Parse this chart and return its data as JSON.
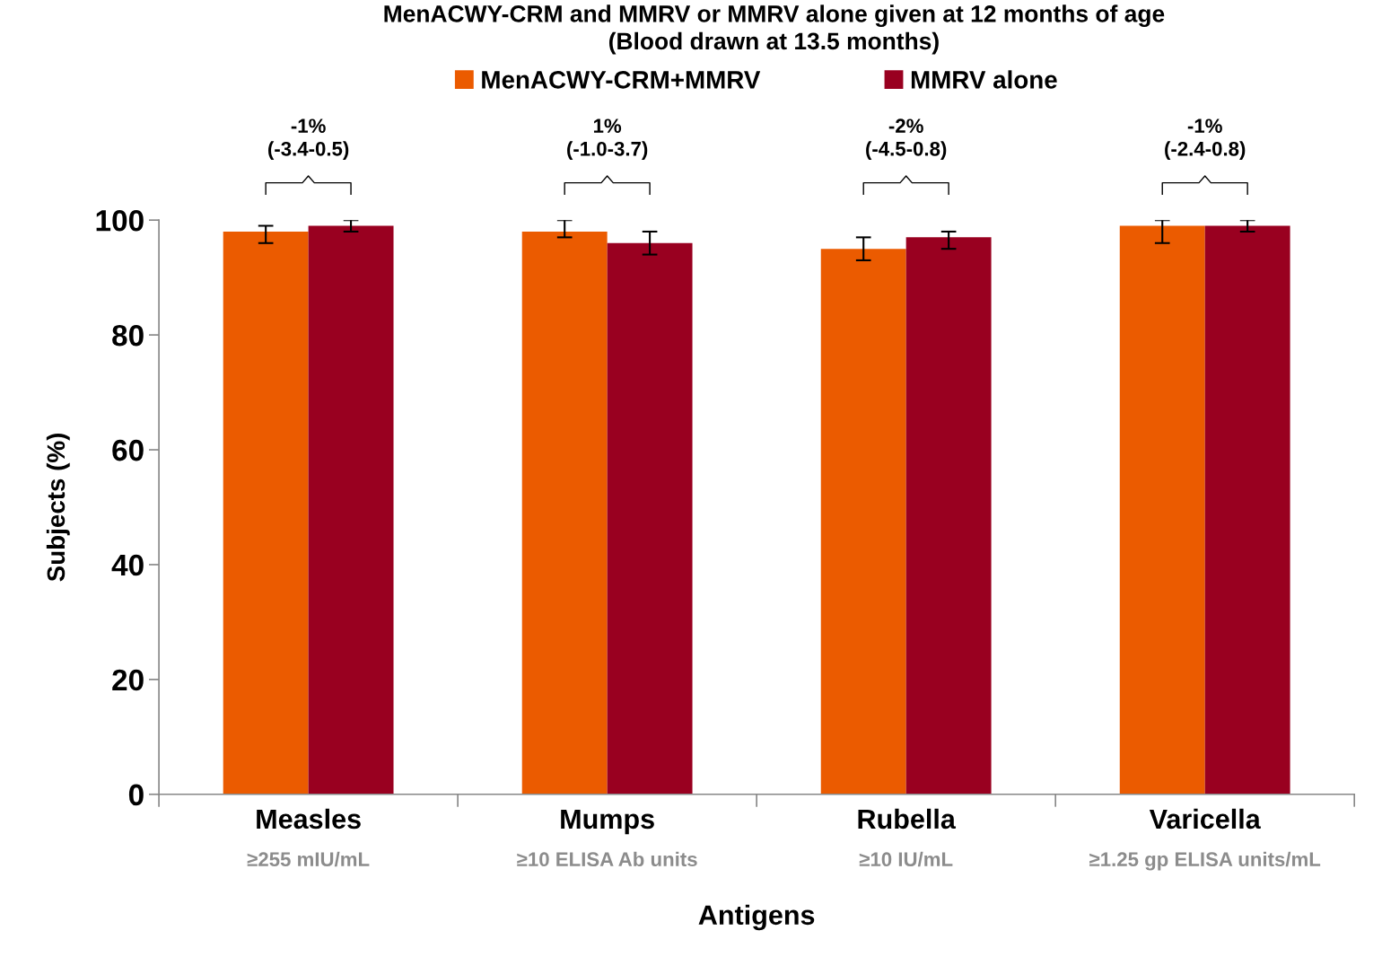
{
  "chart_data": {
    "type": "bar",
    "title": "MenACWY-CRM and MMRV or MMRV alone given at 12 months of age\n(Blood drawn at 13.5 months)",
    "xlabel": "Antigens",
    "ylabel": "Subjects (%)",
    "categories": [
      "Measles\n≥255 mIU/mL",
      "Mumps\n≥10 ELISA Ab units",
      "Rubella\n≥10 IU/mL",
      "Varicella\n≥1.25 gp ELISA units/mL"
    ],
    "series": [
      {
        "name": "MenACWY-CRM+MMRV",
        "color": "#eb5b00",
        "values": [
          98,
          98,
          95,
          99
        ],
        "errors": [
          [
            96,
            99
          ],
          [
            97,
            100
          ],
          [
            93,
            97
          ],
          [
            96,
            100
          ]
        ]
      },
      {
        "name": "MMRV alone",
        "color": "#990020",
        "values": [
          99,
          96,
          97,
          99
        ],
        "errors": [
          [
            98,
            100
          ],
          [
            94,
            98
          ],
          [
            95,
            98
          ],
          [
            98,
            100
          ]
        ]
      }
    ],
    "annotations": [
      "-1%\n(-3.4-0.5)",
      "1%\n(-1.0-3.7)",
      "-2%\n(-4.5-0.8)",
      "-1%\n(-2.4-0.8)"
    ],
    "ylim": [
      0,
      100
    ],
    "yticks": [
      0,
      20,
      40,
      60,
      80,
      100
    ],
    "grid": false,
    "legend": "top"
  }
}
